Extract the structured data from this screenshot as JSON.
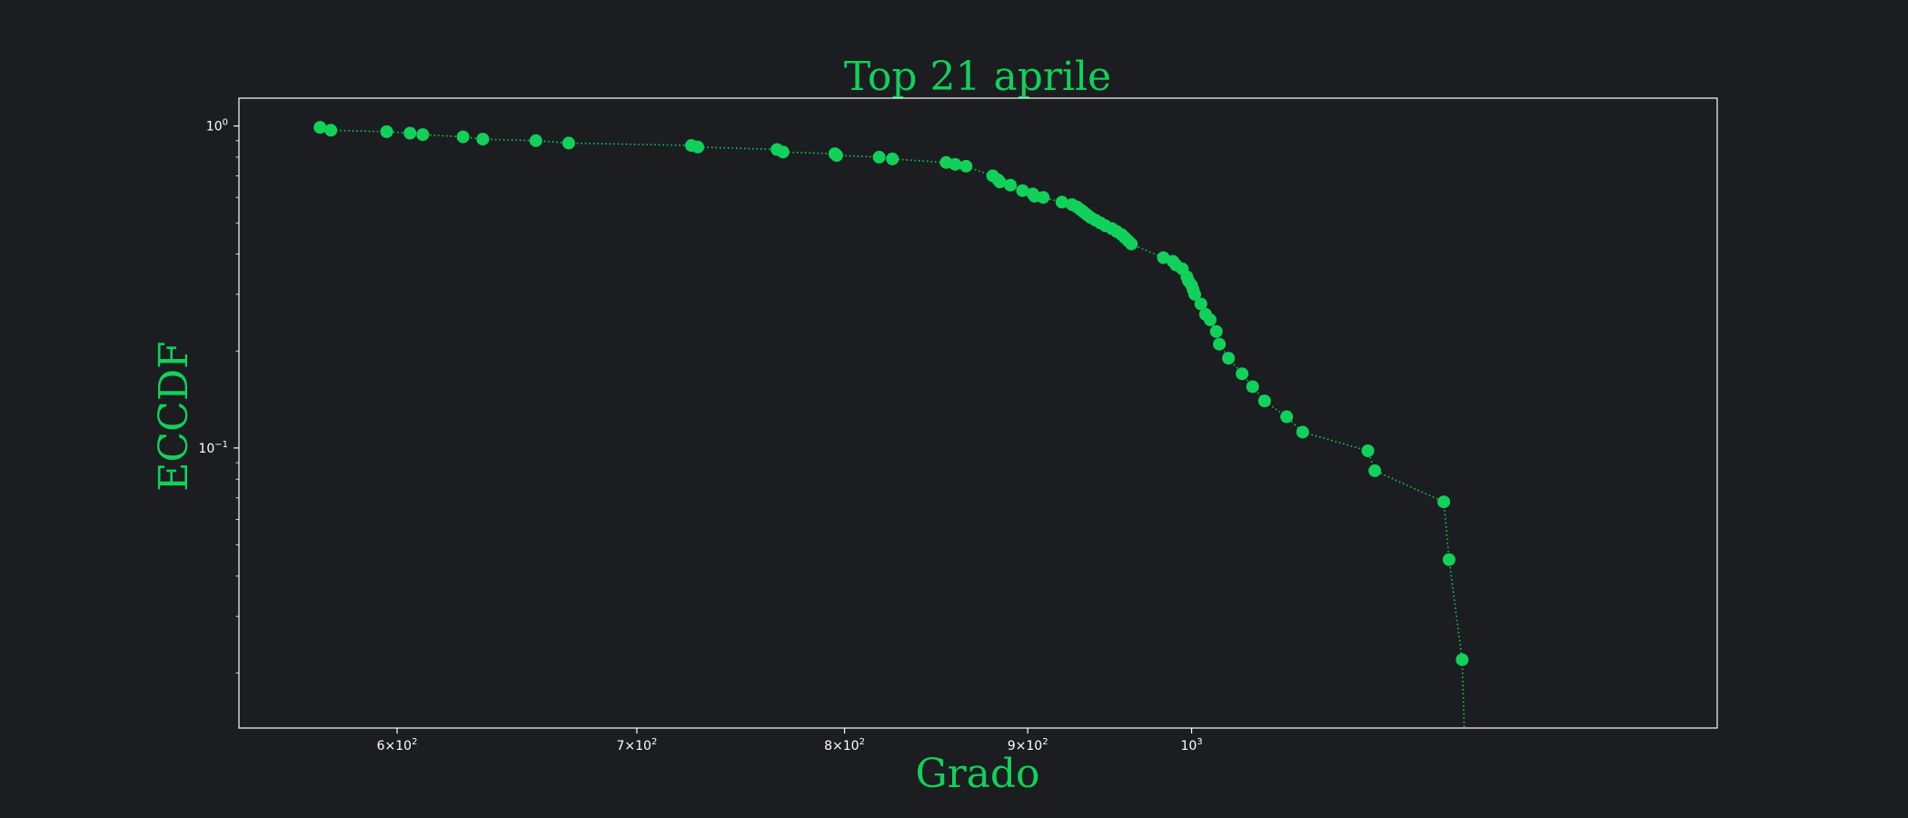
{
  "colors": {
    "background": "#1c1d21",
    "accent": "#12d15a",
    "axes": "#ffffff",
    "tick_text": "#ffffff"
  },
  "chart_data": {
    "type": "scatter",
    "title": "Top 21 aprile",
    "xlabel": "Grado",
    "ylabel": "ECCDF",
    "x_scale": "log",
    "y_scale": "log",
    "xlim": [
      542,
      1402
    ],
    "ylim": [
      0.0135,
      1.22
    ],
    "grid": false,
    "line_style": "dotted",
    "marker": "circle",
    "x_ticks": [
      {
        "value": 600,
        "base": "6",
        "label_sup": "2"
      },
      {
        "value": 700,
        "base": "7",
        "label_sup": "2"
      },
      {
        "value": 800,
        "base": "8",
        "label_sup": "2"
      },
      {
        "value": 900,
        "base": "9",
        "label_sup": "2"
      },
      {
        "value": 1000,
        "base": "",
        "label_sup": "3"
      }
    ],
    "y_ticks": [
      {
        "value": 1,
        "label_sup": "0"
      },
      {
        "value": 0.1,
        "label_sup": "−1"
      }
    ],
    "series": [
      {
        "x": [
          571,
          575,
          596,
          605,
          610,
          626,
          634,
          656,
          670,
          725,
          728,
          766,
          769,
          795,
          796,
          818,
          825,
          854,
          859,
          865,
          880,
          883,
          884,
          890,
          897,
          903,
          904,
          909,
          920,
          926,
          929,
          931,
          933,
          935,
          937,
          940,
          943,
          946,
          950,
          953,
          956,
          958,
          960,
          962,
          982,
          988,
          990,
          994,
          997,
          998,
          1000,
          1001,
          1002,
          1006,
          1009,
          1012,
          1016,
          1018,
          1024,
          1033,
          1040,
          1048,
          1063,
          1074,
          1120,
          1125,
          1176,
          1180,
          1190
        ],
        "y": [
          0.99,
          0.97,
          0.96,
          0.95,
          0.94,
          0.925,
          0.91,
          0.9,
          0.885,
          0.87,
          0.86,
          0.845,
          0.83,
          0.82,
          0.81,
          0.8,
          0.79,
          0.77,
          0.76,
          0.75,
          0.7,
          0.68,
          0.67,
          0.655,
          0.63,
          0.615,
          0.605,
          0.6,
          0.58,
          0.57,
          0.56,
          0.55,
          0.54,
          0.53,
          0.52,
          0.51,
          0.5,
          0.49,
          0.48,
          0.47,
          0.46,
          0.45,
          0.44,
          0.43,
          0.39,
          0.38,
          0.37,
          0.36,
          0.34,
          0.33,
          0.32,
          0.31,
          0.3,
          0.28,
          0.26,
          0.25,
          0.23,
          0.21,
          0.19,
          0.17,
          0.155,
          0.14,
          0.125,
          0.112,
          0.098,
          0.085,
          0.068,
          0.045,
          0.022
        ]
      }
    ]
  }
}
